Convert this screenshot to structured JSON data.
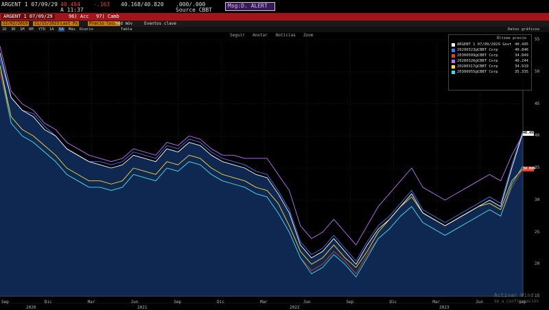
{
  "header": {
    "security": "ARGENT 1 07/09/29",
    "price": "40.494",
    "change": "-.163",
    "bid_ask": "40.168/40.820",
    "extra": ".000/.000",
    "time": "A 11:37",
    "source": "Source CBBT",
    "alert": "Msg:D. ALERT"
  },
  "toolbar": {
    "security_field": "ARGENT 1 07/09/29",
    "acc_label": "96) Acc",
    "camb_label": "97) Camb",
    "date_from": "12/02/2019",
    "date_to": "11/15/2023",
    "last_px": "Last Px",
    "price_label": "Precio local",
    "med_mov": "Med móv",
    "eventos": "Eventos clave",
    "ranges": [
      "1D",
      "3D",
      "1M",
      "6M",
      "YTD",
      "1A",
      "5A",
      "Máx",
      "Diario"
    ],
    "tabla": "Tabla",
    "datos": "Datos gráficos"
  },
  "chart_tools": [
    "Seguir",
    "Anotar",
    "Noticias",
    "Zoom"
  ],
  "legend": {
    "header": "Último precio",
    "rows": [
      {
        "name": "ARGENT 1 07/09/2029 Govt",
        "value": "40.495",
        "color": "#ffffff"
      },
      {
        "name": "20290323@CBBT Corp",
        "value": "40.846",
        "color": "#3c7cff"
      },
      {
        "name": "20300509@CBBT Corp",
        "value": "34.849",
        "color": "#e0402a"
      },
      {
        "name": "20280326@CBBT Corp",
        "value": "40.244",
        "color": "#c070ff"
      },
      {
        "name": "20280317@CBBT Corp",
        "value": "34.919",
        "color": "#ffd83a"
      },
      {
        "name": "20300955@CBBT Corp",
        "value": "35.335",
        "color": "#30e0f0"
      }
    ]
  },
  "price_tags": [
    {
      "text": "40.495",
      "bg": "#ffffff",
      "fg": "#000000",
      "y": 40.5
    },
    {
      "text": "34.849",
      "bg": "#e0402a",
      "fg": "#ffffff",
      "y": 34.85
    }
  ],
  "windows_watermark": [
    "Activar Wind",
    "Ve a Configuración"
  ],
  "chart_data": {
    "type": "line",
    "x": [
      0,
      1,
      2,
      3,
      4,
      5,
      6,
      7,
      8,
      9,
      10,
      11,
      12,
      13,
      14,
      15,
      16,
      17,
      18,
      19,
      20,
      21,
      22,
      23,
      24,
      25,
      26,
      27,
      28,
      29,
      30,
      31,
      32,
      33,
      34,
      35,
      36,
      37,
      38,
      39,
      40,
      41,
      42,
      43,
      44,
      45,
      46,
      47
    ],
    "ylim": [
      15,
      55
    ],
    "yticks": [
      15,
      20,
      25,
      30,
      35,
      40,
      45,
      50,
      55
    ],
    "x_month_labels": [
      "Sep",
      "Dic",
      "Mar",
      "Jun",
      "Sep",
      "Dic",
      "Mar",
      "Jun",
      "Sep",
      "Dic",
      "Mar",
      "Jun",
      "Sep"
    ],
    "x_year_labels": [
      "2020",
      "2021",
      "2022",
      "2023"
    ],
    "series": [
      {
        "name": "ARGENT 1 07/09/2029 Govt",
        "color": "#ffffff",
        "values": [
          53,
          46,
          44,
          43,
          41,
          40,
          38,
          37,
          36,
          35.5,
          35,
          35.5,
          37,
          36.5,
          36,
          38,
          37.5,
          39,
          38.5,
          37,
          36,
          35.5,
          35,
          34,
          33.5,
          31,
          28,
          23,
          21,
          22,
          24,
          22,
          20,
          23,
          25.5,
          27,
          29,
          31,
          28,
          27,
          26,
          27,
          28,
          29,
          30,
          29,
          35,
          40.5
        ]
      },
      {
        "name": "20290323@CBBT Corp",
        "color": "#3c7cff",
        "values": [
          52,
          46,
          44,
          43.5,
          41.5,
          40,
          38,
          37,
          36,
          36,
          35.5,
          36,
          37.5,
          37,
          36.5,
          38.5,
          38,
          39.5,
          39,
          37.5,
          36.5,
          36,
          35.5,
          34.5,
          34,
          31.5,
          28.5,
          23.5,
          21.5,
          22.5,
          24.5,
          22.5,
          20.5,
          23.5,
          26,
          27.5,
          29.5,
          31.5,
          28.5,
          27.5,
          26.5,
          27.5,
          28.5,
          29.5,
          30.5,
          29.5,
          35.5,
          40.8
        ]
      },
      {
        "name": "20300509@CBBT Corp",
        "color": "#e0402a",
        "values": [
          50,
          42,
          40,
          39,
          37.5,
          36,
          34,
          33,
          32,
          32,
          31.5,
          32,
          34,
          33.5,
          33,
          35,
          34.5,
          36,
          35.5,
          34,
          33,
          32.5,
          32,
          31,
          30.5,
          28,
          25,
          21,
          19,
          20,
          22,
          20.5,
          18.5,
          21.5,
          24,
          25.5,
          27.5,
          29,
          26.5,
          25.5,
          24.5,
          25.5,
          26.5,
          27.5,
          28.5,
          27.5,
          32,
          34.85
        ]
      },
      {
        "name": "20280326@CBBT Corp",
        "color": "#c070ff",
        "values": [
          54,
          47,
          45,
          44,
          42,
          41,
          39,
          38,
          37,
          36.5,
          36,
          36.5,
          38,
          37.5,
          37,
          39,
          38.5,
          40,
          39.5,
          38,
          37,
          37,
          36.5,
          36.5,
          36.5,
          34,
          31.5,
          26,
          24,
          25,
          27,
          25,
          23,
          26,
          29,
          31,
          33,
          35,
          32,
          31,
          30,
          31,
          32,
          33,
          34,
          33,
          37,
          40.24
        ]
      },
      {
        "name": "20280317@CBBT Corp",
        "color": "#ffd83a",
        "values": [
          51,
          43,
          41,
          40,
          38.5,
          37,
          35,
          34,
          33,
          33,
          32.5,
          33,
          35,
          34.5,
          34,
          36,
          35.5,
          37,
          36.5,
          35,
          34,
          33.5,
          33,
          32,
          31.5,
          29.5,
          26,
          22,
          20,
          21,
          23,
          21,
          19.5,
          22,
          25,
          27,
          29,
          30.5,
          28,
          27,
          26,
          27,
          28,
          29,
          29.5,
          28.5,
          33,
          34.92
        ]
      },
      {
        "name": "20300955@CBBT Corp",
        "color": "#30e0f0",
        "values": [
          51,
          42,
          40,
          39,
          37.5,
          36,
          34,
          33,
          32,
          32,
          31.5,
          32,
          34,
          33.5,
          33,
          35,
          34.5,
          36,
          35.5,
          34,
          33,
          32.5,
          32,
          31,
          30.5,
          28,
          25,
          21,
          18.5,
          19.5,
          21.5,
          20,
          18,
          21,
          24,
          25.5,
          27.5,
          29,
          26.5,
          25.5,
          24.5,
          25.5,
          26.5,
          27.5,
          28.5,
          27.5,
          32.5,
          35.34
        ]
      }
    ]
  }
}
